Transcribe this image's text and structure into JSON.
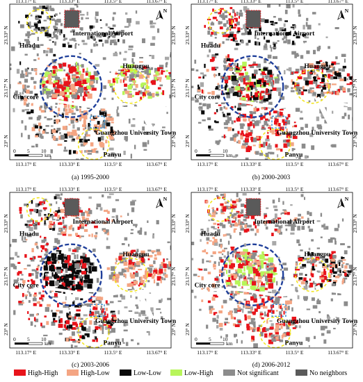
{
  "panels": [
    {
      "caption": "(a) 1995-2000",
      "pattern": "a"
    },
    {
      "caption": "(b) 2000-2003",
      "pattern": "b"
    },
    {
      "caption": "(c) 2003-2006",
      "pattern": "c"
    },
    {
      "caption": "(d) 2006-2012",
      "pattern": "d"
    }
  ],
  "lon_ticks": [
    "113.17° E",
    "113.33° E",
    "113.5° E",
    "113.67° E"
  ],
  "lat_ticks": [
    "23.33° N",
    "23.17° N",
    "23° N"
  ],
  "places": {
    "huadu": "Huadu",
    "airport": "International Airport",
    "huangpu": "Huangpu",
    "city_core": "City core",
    "university_town": "Guangzhou University Town",
    "panyu": "Panyu"
  },
  "north_arrow": "N",
  "scale": {
    "labels": [
      "0",
      "5",
      "10"
    ],
    "unit": "km"
  },
  "legend": [
    {
      "label": "High-High",
      "color": "#e8141b"
    },
    {
      "label": "High-Low",
      "color": "#f4a583"
    },
    {
      "label": "Low-Low",
      "color": "#0a0a0a"
    },
    {
      "label": "Low-High",
      "color": "#b8f55a"
    },
    {
      "label": "Not significant",
      "color": "#8c8c8c"
    },
    {
      "label": "No neighbors",
      "color": "#5a5a5a"
    }
  ]
}
